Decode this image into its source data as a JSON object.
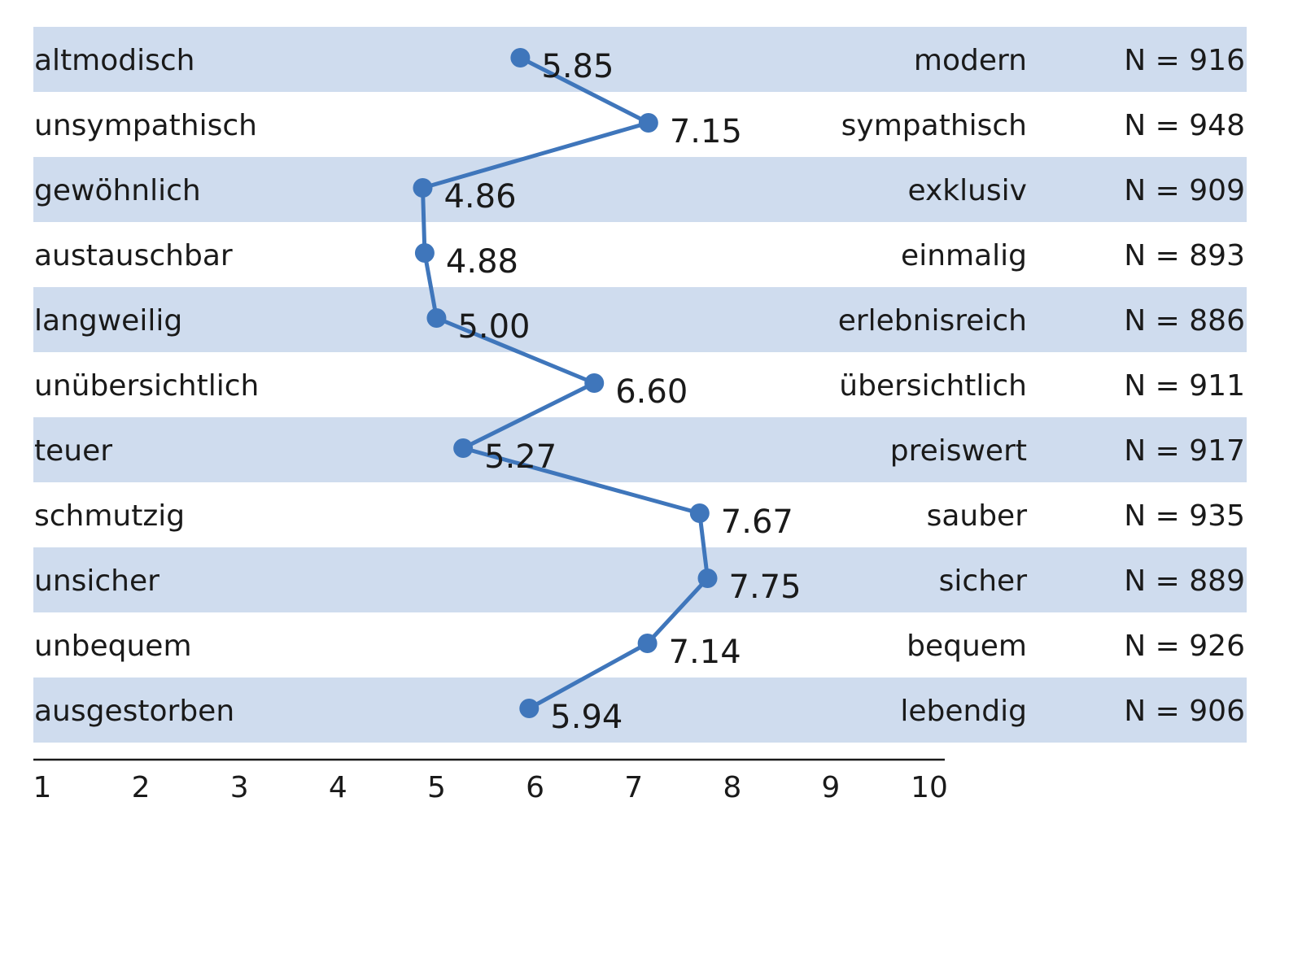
{
  "chart_data": {
    "type": "line",
    "orientation": "horizontal",
    "title": "",
    "xlabel": "",
    "ylabel": "",
    "xlim": [
      1,
      10
    ],
    "x_ticks": [
      "1",
      "2",
      "3",
      "4",
      "5",
      "6",
      "7",
      "8",
      "9",
      "10"
    ],
    "grid": false,
    "band_color": "#cfdcee",
    "line_color": "#3f76bb",
    "rows": [
      {
        "left": "altmodisch",
        "right": "modern",
        "value": 5.85,
        "label": "5.85",
        "n": "N = 916"
      },
      {
        "left": "unsympathisch",
        "right": "sympathisch",
        "value": 7.15,
        "label": "7.15",
        "n": "N = 948"
      },
      {
        "left": "gewöhnlich",
        "right": "exklusiv",
        "value": 4.86,
        "label": "4.86",
        "n": "N = 909"
      },
      {
        "left": "austauschbar",
        "right": "einmalig",
        "value": 4.88,
        "label": "4.88",
        "n": "N = 893"
      },
      {
        "left": "langweilig",
        "right": "erlebnisreich",
        "value": 5.0,
        "label": "5.00",
        "n": "N = 886"
      },
      {
        "left": "unübersichtlich",
        "right": "übersichtlich",
        "value": 6.6,
        "label": "6.60",
        "n": "N = 911"
      },
      {
        "left": "teuer",
        "right": "preiswert",
        "value": 5.27,
        "label": "5.27",
        "n": "N = 917"
      },
      {
        "left": "schmutzig",
        "right": "sauber",
        "value": 7.67,
        "label": "7.67",
        "n": "N = 935"
      },
      {
        "left": "unsicher",
        "right": "sicher",
        "value": 7.75,
        "label": "7.75",
        "n": "N = 889"
      },
      {
        "left": "unbequem",
        "right": "bequem",
        "value": 7.14,
        "label": "7.14",
        "n": "N = 926"
      },
      {
        "left": "ausgestorben",
        "right": "lebendig",
        "value": 5.94,
        "label": "5.94",
        "n": "N = 906"
      }
    ]
  }
}
